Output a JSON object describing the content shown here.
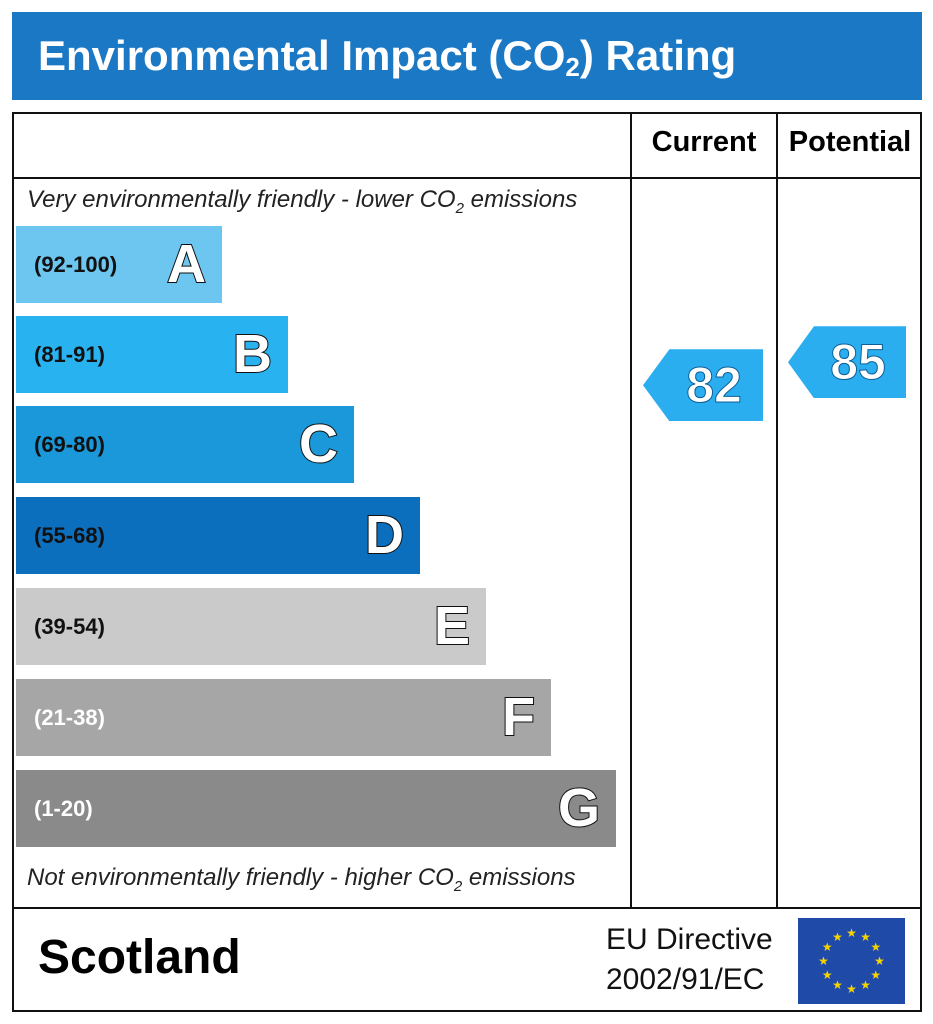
{
  "header": {
    "title": "Environmental Impact (CO",
    "title_sub": "2",
    "title_end": ") Rating"
  },
  "columns": {
    "current": "Current",
    "potential": "Potential"
  },
  "notes": {
    "top": "Very environmentally friendly - lower CO",
    "top_sub": "2",
    "top_end": " emissions",
    "bottom": "Not environmentally friendly - higher CO",
    "bottom_sub": "2",
    "bottom_end": " emissions"
  },
  "chart_data": {
    "type": "bar",
    "bands": [
      {
        "letter": "A",
        "range": "(92-100)",
        "min": 92,
        "max": 100,
        "color": "#6cc6ef",
        "text_color": "#111"
      },
      {
        "letter": "B",
        "range": "(81-91)",
        "min": 81,
        "max": 91,
        "color": "#28b3f0",
        "text_color": "#111"
      },
      {
        "letter": "C",
        "range": "(69-80)",
        "min": 69,
        "max": 80,
        "color": "#1a98d9",
        "text_color": "#111"
      },
      {
        "letter": "D",
        "range": "(55-68)",
        "min": 55,
        "max": 68,
        "color": "#0c6fbd",
        "text_color": "#111"
      },
      {
        "letter": "E",
        "range": "(39-54)",
        "min": 39,
        "max": 54,
        "color": "#cacaca",
        "text_color": "#111"
      },
      {
        "letter": "F",
        "range": "(21-38)",
        "min": 21,
        "max": 38,
        "color": "#a6a6a6",
        "text_color": "#fff"
      },
      {
        "letter": "G",
        "range": "(1-20)",
        "min": 1,
        "max": 20,
        "color": "#8a8a8a",
        "text_color": "#fff"
      }
    ],
    "current": 82,
    "potential": 85,
    "arrow_color": "#2aaef0"
  },
  "footer": {
    "region": "Scotland",
    "directive_line1": "EU Directive",
    "directive_line2": "2002/91/EC",
    "flag_color": "#1f4aa8",
    "star_color": "#f5d300"
  }
}
